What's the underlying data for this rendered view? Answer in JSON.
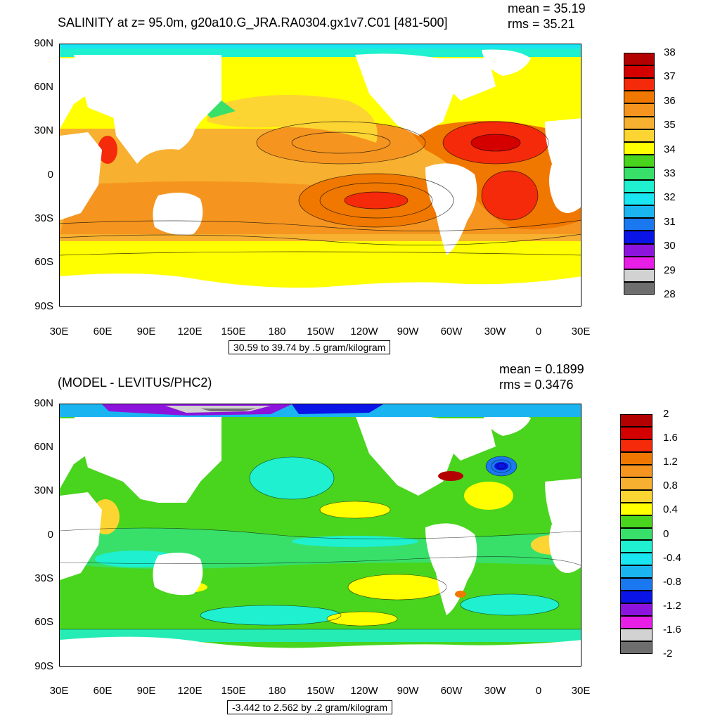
{
  "panels": [
    {
      "title": "SALINITY at z=  95.0m, g20a10.G_JRA.RA0304.gx1v7.C01 [481-500]",
      "mean_label": "mean = 35.19",
      "rms_label": "rms = 35.21",
      "range_label": "30.59 to 39.74 by .5 gram/kilogram",
      "lat_labels": [
        "90N",
        "60N",
        "30N",
        "0",
        "30S",
        "60S",
        "90S"
      ],
      "lon_labels": [
        "30E",
        "60E",
        "90E",
        "120E",
        "150E",
        "180",
        "150W",
        "120W",
        "90W",
        "60W",
        "30W",
        "0",
        "30E"
      ],
      "colorbar": {
        "colors": [
          "#b30000",
          "#d40000",
          "#f52a0a",
          "#f07800",
          "#f59520",
          "#f7b030",
          "#fdd532",
          "#ffff00",
          "#49d41e",
          "#38e06a",
          "#1ef0d0",
          "#19e6f0",
          "#1ab4f0",
          "#1a78f0",
          "#0a14e6",
          "#8c14dc",
          "#e61ee6",
          "#d2d2d2",
          "#6e6e6e"
        ],
        "labels": [
          "38",
          "37",
          "36",
          "35",
          "34",
          "33",
          "32",
          "31",
          "30",
          "29",
          "28"
        ]
      }
    },
    {
      "title": "(MODEL - LEVITUS/PHC2)",
      "mean_label": "mean = 0.1899",
      "rms_label": "rms = 0.3476",
      "range_label": "-3.442 to 2.562 by .2 gram/kilogram",
      "lat_labels": [
        "90N",
        "60N",
        "30N",
        "0",
        "30S",
        "60S",
        "90S"
      ],
      "lon_labels": [
        "30E",
        "60E",
        "90E",
        "120E",
        "150E",
        "180",
        "150W",
        "120W",
        "90W",
        "60W",
        "30W",
        "0",
        "30E"
      ],
      "colorbar": {
        "colors": [
          "#b30000",
          "#d40000",
          "#f52a0a",
          "#f07800",
          "#f59520",
          "#f7b030",
          "#fdd532",
          "#ffff00",
          "#49d41e",
          "#38e06a",
          "#1ef0d0",
          "#19e6f0",
          "#1ab4f0",
          "#1a78f0",
          "#0a14e6",
          "#8c14dc",
          "#e61ee6",
          "#d2d2d2",
          "#6e6e6e"
        ],
        "labels": [
          "2",
          "1.6",
          "1.2",
          "0.8",
          "0.4",
          "0",
          "-0.4",
          "-0.8",
          "-1.2",
          "-1.6",
          "-2"
        ]
      }
    }
  ]
}
